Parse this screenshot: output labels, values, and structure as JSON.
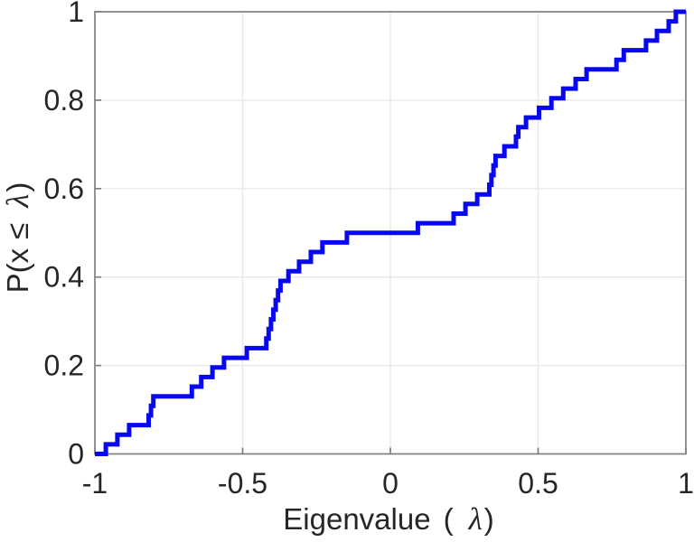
{
  "page": {
    "title": "Empirical CDF of eigenvalues",
    "background": "#ffffff"
  },
  "chart_data": {
    "type": "line",
    "subtype": "ecdf_stairs",
    "title": "",
    "xlabel": "Eigenvalue ( λ)",
    "ylabel": "P(x ≤ λ)",
    "xlim": [
      -1,
      1
    ],
    "ylim": [
      0,
      1
    ],
    "xticks": [
      -1,
      -0.5,
      0,
      0.5,
      1
    ],
    "xtick_labels": [
      "-1",
      "-0.5",
      "0",
      "0.5",
      "1"
    ],
    "yticks": [
      0,
      0.2,
      0.4,
      0.6,
      0.8,
      1
    ],
    "ytick_labels": [
      "0",
      "0.2",
      "0.4",
      "0.6",
      "0.8",
      "1"
    ],
    "grid": true,
    "legend_position": "none",
    "n_points": 46,
    "step_height": 0.0217,
    "eigenvalues": [
      -0.963,
      -0.924,
      -0.884,
      -0.818,
      -0.81,
      -0.802,
      -0.672,
      -0.64,
      -0.602,
      -0.563,
      -0.486,
      -0.42,
      -0.412,
      -0.404,
      -0.396,
      -0.388,
      -0.38,
      -0.372,
      -0.345,
      -0.309,
      -0.269,
      -0.23,
      -0.147,
      0.093,
      0.214,
      0.254,
      0.294,
      0.335,
      0.342,
      0.349,
      0.356,
      0.386,
      0.425,
      0.433,
      0.459,
      0.503,
      0.545,
      0.585,
      0.627,
      0.664,
      0.765,
      0.79,
      0.865,
      0.902,
      0.942,
      0.966
    ],
    "cdf_note": "y rises by 1/46 at each eigenvalue; flat at 0.5 between -0.147 and 0.093; flat at 0.87 between 0.664 and 0.765",
    "line_color": "#0808ee",
    "line_width": 5,
    "grid_color": "#e8e8e8",
    "axis_color": "#808080",
    "text_color": "#262626"
  },
  "labels": {
    "xlabel_word": "Eigenvalue",
    "xlabel_open": "(",
    "xlabel_lambda": "λ",
    "xlabel_close": ")",
    "ylabel_prefix": "P(x",
    "ylabel_le": "≤",
    "ylabel_lambda": "λ",
    "ylabel_suffix": ")"
  }
}
